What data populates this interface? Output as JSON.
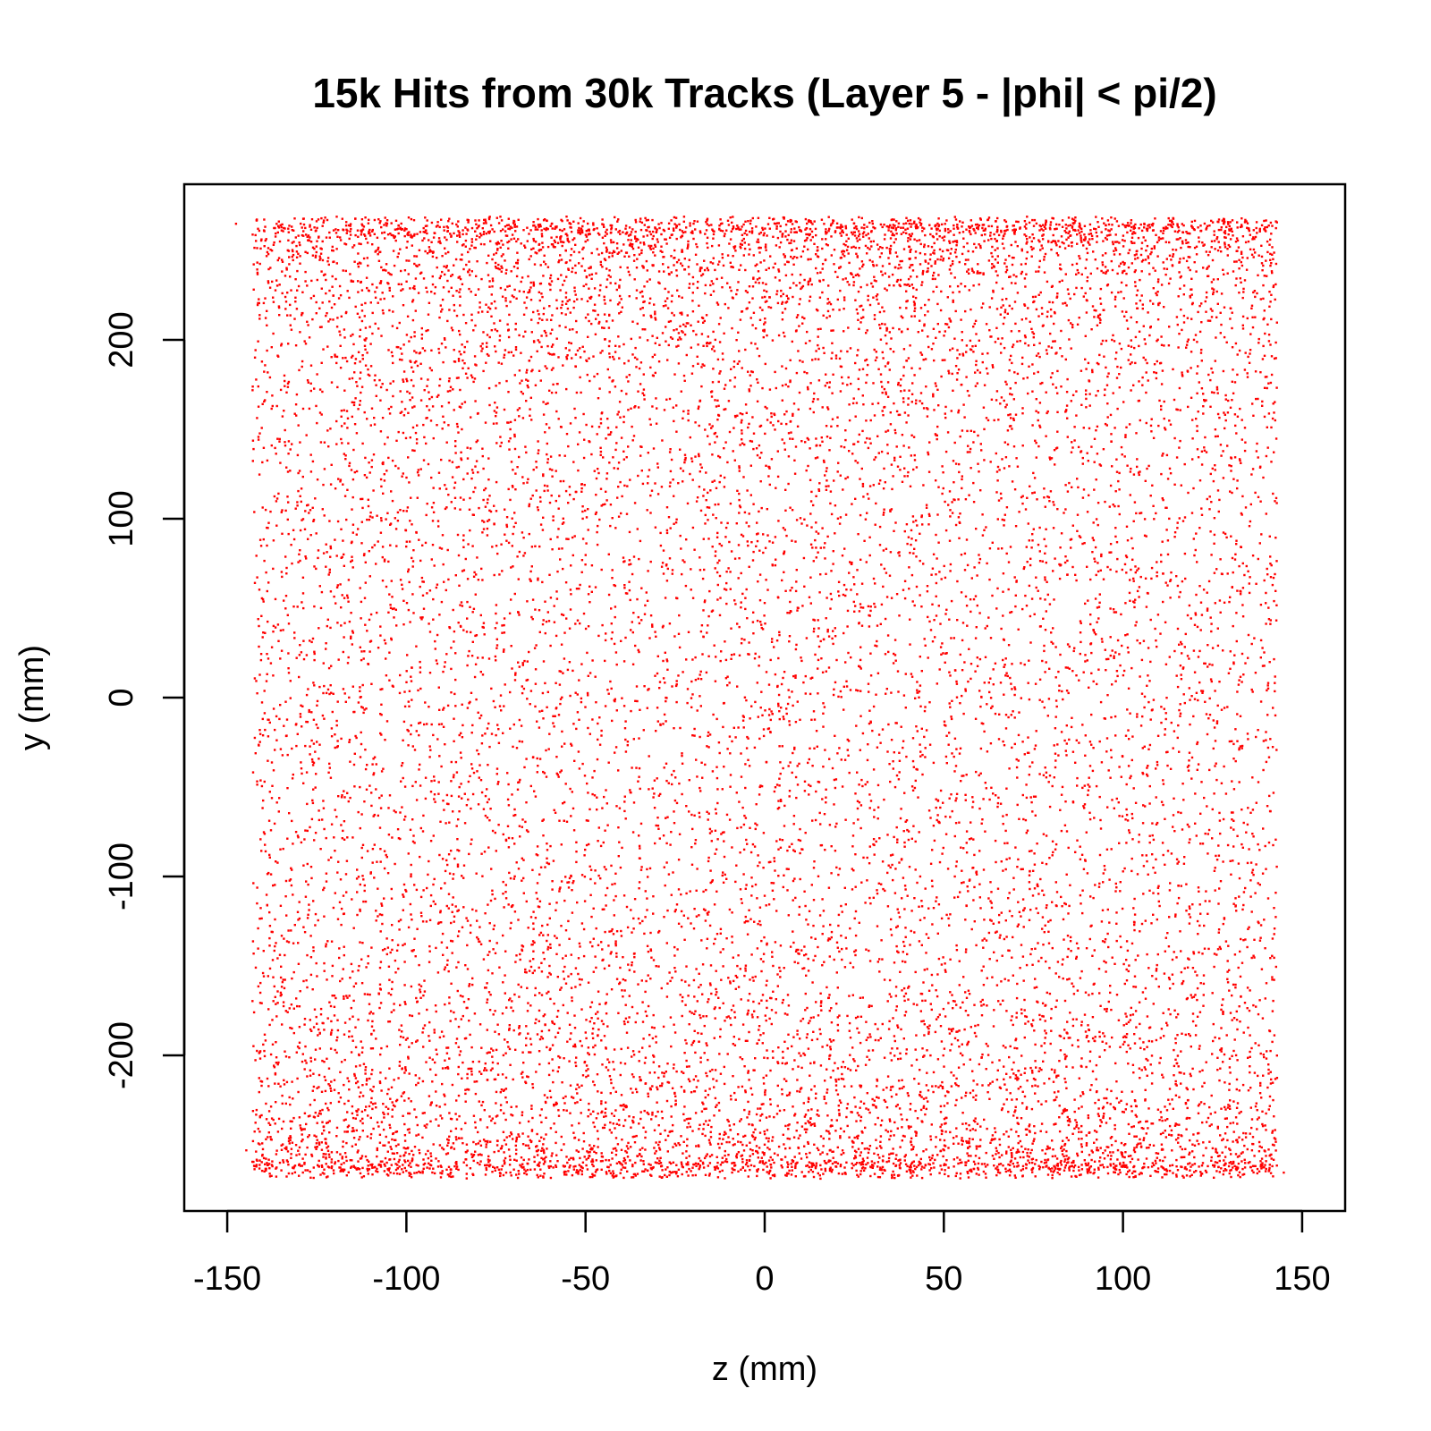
{
  "chart_data": {
    "type": "scatter",
    "title": "15k Hits from 30k Tracks (Layer 5 - |phi| < pi/2)",
    "xlabel": "z (mm)",
    "ylabel": "y (mm)",
    "xlim": [
      -162,
      162
    ],
    "ylim": [
      -287,
      287
    ],
    "x_ticks": [
      {
        "value": -150,
        "label": "-150"
      },
      {
        "value": -100,
        "label": "-100"
      },
      {
        "value": -50,
        "label": "-50"
      },
      {
        "value": 0,
        "label": "0"
      },
      {
        "value": 50,
        "label": "50"
      },
      {
        "value": 100,
        "label": "100"
      },
      {
        "value": 150,
        "label": "150"
      }
    ],
    "y_ticks": [
      {
        "value": -200,
        "label": "-200"
      },
      {
        "value": -100,
        "label": "-100"
      },
      {
        "value": 0,
        "label": "0"
      },
      {
        "value": 100,
        "label": "100"
      },
      {
        "value": 200,
        "label": "200"
      }
    ],
    "grid": false,
    "legend": "none",
    "point_color": "#ff0000",
    "series": [
      {
        "distribution": "uniform-z-cos-y",
        "point_count": 15000,
        "z_range": [
          -143,
          143
        ],
        "radius": 265,
        "values": [
          [
            -130.2,
            248.1
          ],
          [
            -98.4,
            252.7
          ],
          [
            -55.1,
            258.3
          ],
          [
            -12.6,
            263.9
          ],
          [
            22.7,
            262.4
          ],
          [
            61.3,
            255.2
          ],
          [
            103.8,
            249.5
          ],
          [
            133.4,
            246.0
          ],
          [
            -121.7,
            210.3
          ],
          [
            -75.2,
            205.8
          ],
          [
            -30.5,
            198.1
          ],
          [
            14.9,
            201.7
          ],
          [
            58.2,
            207.4
          ],
          [
            97.6,
            199.3
          ],
          [
            126.1,
            212.6
          ],
          [
            -114.3,
            152.9
          ],
          [
            -66.8,
            140.2
          ],
          [
            -20.4,
            133.7
          ],
          [
            31.5,
            146.1
          ],
          [
            80.9,
            138.4
          ],
          [
            120.7,
            151.8
          ],
          [
            -127.5,
            88.6
          ],
          [
            -83.9,
            71.2
          ],
          [
            -41.7,
            62.5
          ],
          [
            5.3,
            80.4
          ],
          [
            47.8,
            68.9
          ],
          [
            92.2,
            76.1
          ],
          [
            131.9,
            59.7
          ],
          [
            -105.6,
            12.4
          ],
          [
            -58.1,
            -5.7
          ],
          [
            -9.8,
            8.3
          ],
          [
            36.6,
            -14.2
          ],
          [
            84.4,
            3.9
          ],
          [
            124.3,
            -9.6
          ],
          [
            -119.9,
            -62.8
          ],
          [
            -71.4,
            -78.5
          ],
          [
            -25.2,
            -70.1
          ],
          [
            19.7,
            -85.6
          ],
          [
            66.5,
            -66.3
          ],
          [
            111.1,
            -81.2
          ],
          [
            -132.8,
            -136.7
          ],
          [
            -88.6,
            -149.4
          ],
          [
            -43.3,
            -130.8
          ],
          [
            2.1,
            -144.9
          ],
          [
            50.4,
            -152.3
          ],
          [
            95.9,
            -139.5
          ],
          [
            135.2,
            -128.4
          ],
          [
            -124.1,
            -196.2
          ],
          [
            -79.7,
            -203.5
          ],
          [
            -33.8,
            -190.7
          ],
          [
            11.2,
            -199.8
          ],
          [
            55.6,
            -205.1
          ],
          [
            101.5,
            -194.4
          ],
          [
            129.8,
            -201.9
          ],
          [
            -117.4,
            -236.3
          ],
          [
            -64.9,
            -241.7
          ],
          [
            -18.1,
            -238.9
          ],
          [
            27.3,
            -243.2
          ],
          [
            73.8,
            -239.6
          ],
          [
            118.6,
            -235.1
          ],
          [
            -128.9,
            -257.8
          ],
          [
            -86.2,
            -260.1
          ],
          [
            -39.5,
            -262.7
          ],
          [
            7.7,
            -264.3
          ],
          [
            44.9,
            -261.5
          ],
          [
            89.3,
            -258.6
          ],
          [
            136.7,
            -256.2
          ]
        ]
      }
    ]
  }
}
